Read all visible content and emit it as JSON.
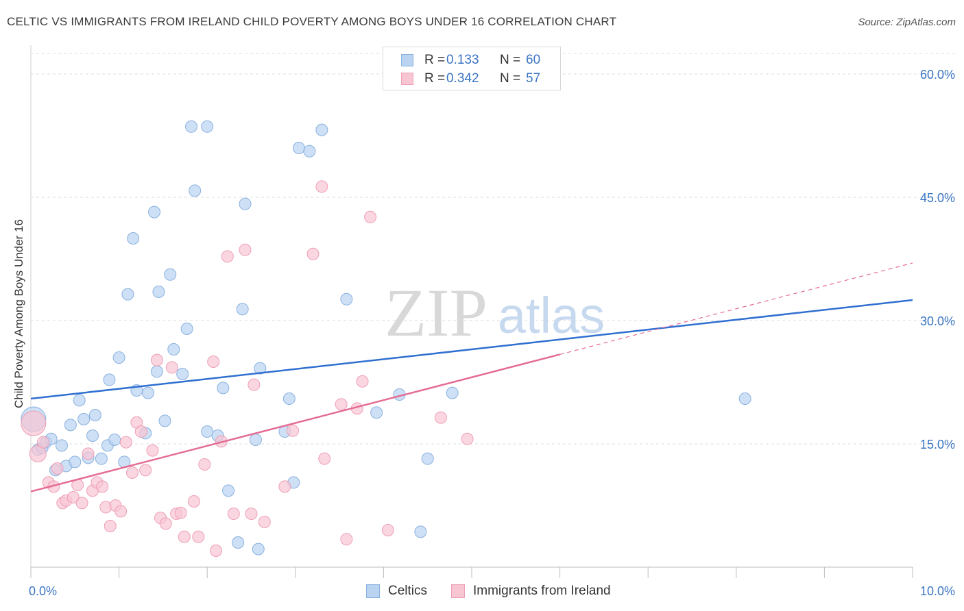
{
  "title": "CELTIC VS IMMIGRANTS FROM IRELAND CHILD POVERTY AMONG BOYS UNDER 16 CORRELATION CHART",
  "source": "Source: ZipAtlas.com",
  "watermark": {
    "zip": "ZIP",
    "atlas": "atlas"
  },
  "colors": {
    "celtics_fill": "#b9d3f1",
    "celtics_stroke": "#8ab1e0",
    "celtics_line": "#2f6fd0",
    "ireland_fill": "#f8c5d3",
    "ireland_stroke": "#ee9fb6",
    "ireland_line": "#e46c94",
    "tick_label": "#3a75c4",
    "grid": "#dddddd"
  },
  "legend_top": {
    "rows": [
      {
        "r_label": "R = ",
        "r_value": "0.133",
        "n_label": "N = ",
        "n_value": "60"
      },
      {
        "r_label": "R = ",
        "r_value": "0.342",
        "n_label": "N = ",
        "n_value": "57"
      }
    ]
  },
  "legend_bottom": {
    "celtics": "Celtics",
    "ireland": "Immigrants from Ireland"
  },
  "chart_data": {
    "type": "scatter",
    "title": "CELTIC VS IMMIGRANTS FROM IRELAND CHILD POVERTY AMONG BOYS UNDER 16 CORRELATION CHART",
    "xlabel": "",
    "ylabel": "Child Poverty Among Boys Under 16",
    "xlim": [
      0,
      10
    ],
    "ylim": [
      0,
      63
    ],
    "x_tick_labels": [
      {
        "value": 0,
        "label": "0.0%"
      },
      {
        "value": 10,
        "label": "10.0%"
      }
    ],
    "y_tick_labels": [
      {
        "value": 15,
        "label": "15.0%"
      },
      {
        "value": 30,
        "label": "30.0%"
      },
      {
        "value": 45,
        "label": "45.0%"
      },
      {
        "value": 60,
        "label": "60.0%"
      }
    ],
    "grid": true,
    "legend_position": "top-center",
    "series": [
      {
        "name": "Celtics",
        "r": "0.133",
        "n": "60",
        "trend": {
          "x": [
            0,
            10
          ],
          "y": [
            20.5,
            32.5
          ],
          "dashed_from": null
        },
        "points": [
          [
            0.03,
            18.0,
            "big"
          ],
          [
            0.08,
            14.3
          ],
          [
            0.13,
            14.5
          ],
          [
            0.17,
            15.2
          ],
          [
            0.23,
            15.6
          ],
          [
            0.28,
            11.8
          ],
          [
            0.35,
            14.8
          ],
          [
            0.4,
            12.3
          ],
          [
            0.45,
            17.3
          ],
          [
            0.5,
            12.8
          ],
          [
            0.55,
            20.3
          ],
          [
            0.6,
            18.0
          ],
          [
            0.65,
            13.3
          ],
          [
            0.7,
            16.0
          ],
          [
            0.73,
            18.5
          ],
          [
            0.8,
            13.2
          ],
          [
            0.87,
            14.8
          ],
          [
            0.89,
            22.8
          ],
          [
            0.95,
            15.5
          ],
          [
            1.0,
            25.5
          ],
          [
            1.06,
            12.8
          ],
          [
            1.1,
            33.2
          ],
          [
            1.16,
            40.0
          ],
          [
            1.2,
            21.5
          ],
          [
            1.3,
            16.3
          ],
          [
            1.33,
            21.2
          ],
          [
            1.4,
            43.2
          ],
          [
            1.43,
            23.8
          ],
          [
            1.45,
            33.5
          ],
          [
            1.52,
            17.8
          ],
          [
            1.58,
            35.6
          ],
          [
            1.62,
            26.5
          ],
          [
            1.72,
            23.5
          ],
          [
            1.77,
            29.0
          ],
          [
            1.82,
            53.6
          ],
          [
            1.86,
            45.8
          ],
          [
            2.0,
            53.6
          ],
          [
            2.0,
            16.5
          ],
          [
            2.12,
            16.0
          ],
          [
            2.18,
            21.8
          ],
          [
            2.24,
            9.3
          ],
          [
            2.35,
            3.0
          ],
          [
            2.4,
            31.4
          ],
          [
            2.43,
            44.2
          ],
          [
            2.55,
            15.5
          ],
          [
            2.58,
            2.2
          ],
          [
            2.6,
            24.2
          ],
          [
            2.88,
            16.5
          ],
          [
            2.93,
            20.5
          ],
          [
            2.98,
            10.3
          ],
          [
            3.04,
            51.0
          ],
          [
            3.16,
            50.6
          ],
          [
            3.3,
            53.2
          ],
          [
            3.58,
            32.6
          ],
          [
            3.92,
            18.8
          ],
          [
            4.18,
            21.0
          ],
          [
            4.42,
            4.3
          ],
          [
            4.5,
            13.2
          ],
          [
            4.78,
            21.2
          ],
          [
            8.1,
            20.5
          ]
        ]
      },
      {
        "name": "Immigrants from Ireland",
        "r": "0.342",
        "n": "57",
        "trend": {
          "x": [
            0,
            10
          ],
          "y": [
            9.2,
            37.0
          ],
          "dashed_from": 6
        },
        "points": [
          [
            0.03,
            17.5,
            "big"
          ],
          [
            0.08,
            13.8,
            "mid"
          ],
          [
            0.14,
            15.2
          ],
          [
            0.2,
            10.3
          ],
          [
            0.26,
            9.8
          ],
          [
            0.3,
            12.0
          ],
          [
            0.36,
            7.8
          ],
          [
            0.4,
            8.1
          ],
          [
            0.48,
            8.5
          ],
          [
            0.53,
            10.0
          ],
          [
            0.58,
            7.8
          ],
          [
            0.65,
            13.8
          ],
          [
            0.7,
            9.3
          ],
          [
            0.75,
            10.3
          ],
          [
            0.81,
            9.8
          ],
          [
            0.85,
            7.3
          ],
          [
            0.9,
            5.0
          ],
          [
            0.96,
            7.5
          ],
          [
            1.02,
            6.8
          ],
          [
            1.08,
            15.2
          ],
          [
            1.15,
            11.5
          ],
          [
            1.2,
            17.6
          ],
          [
            1.25,
            16.5
          ],
          [
            1.3,
            11.8
          ],
          [
            1.38,
            14.2
          ],
          [
            1.43,
            25.2
          ],
          [
            1.47,
            6.0
          ],
          [
            1.53,
            5.3
          ],
          [
            1.6,
            24.3
          ],
          [
            1.65,
            6.5
          ],
          [
            1.7,
            6.6
          ],
          [
            1.74,
            3.7
          ],
          [
            1.85,
            8.0
          ],
          [
            1.9,
            3.7
          ],
          [
            1.97,
            12.5
          ],
          [
            2.07,
            25.0
          ],
          [
            2.1,
            2.0
          ],
          [
            2.16,
            15.3
          ],
          [
            2.23,
            37.8
          ],
          [
            2.3,
            6.5
          ],
          [
            2.43,
            38.6
          ],
          [
            2.5,
            6.5
          ],
          [
            2.53,
            22.2
          ],
          [
            2.65,
            5.5
          ],
          [
            2.88,
            9.8
          ],
          [
            2.97,
            16.6
          ],
          [
            3.2,
            38.1
          ],
          [
            3.3,
            46.3
          ],
          [
            3.33,
            13.2
          ],
          [
            3.52,
            19.8
          ],
          [
            3.58,
            3.4
          ],
          [
            3.7,
            19.3
          ],
          [
            3.76,
            22.6
          ],
          [
            3.85,
            42.6
          ],
          [
            4.05,
            4.5
          ],
          [
            4.65,
            18.2
          ],
          [
            4.95,
            15.6
          ]
        ]
      }
    ]
  }
}
